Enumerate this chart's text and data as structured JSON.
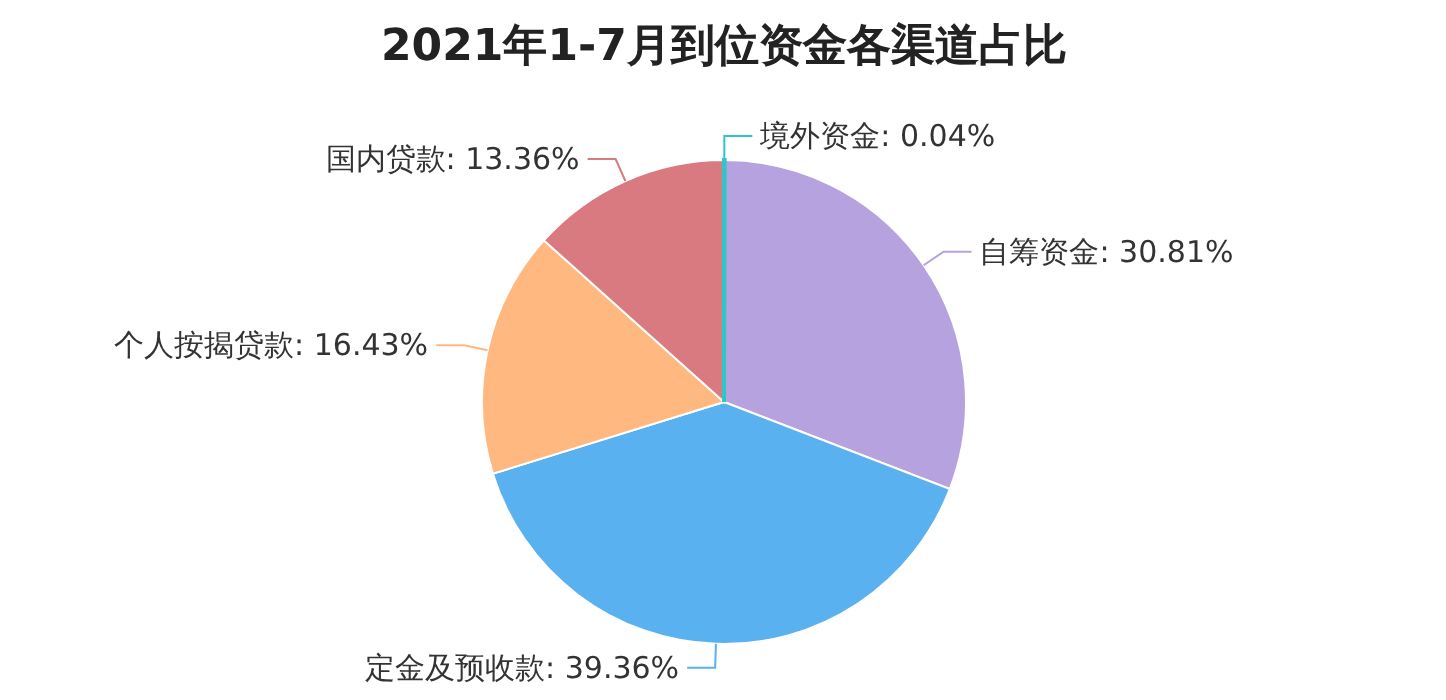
{
  "chart_data": {
    "type": "pie",
    "title": "2021年1-7月到位资金各渠道占比",
    "categories": [
      "境外资金",
      "自筹资金",
      "定金及预收款",
      "个人按揭贷款",
      "国内贷款"
    ],
    "values": [
      0.04,
      30.81,
      39.36,
      16.43,
      13.36
    ],
    "value_labels": [
      "0.04%",
      "30.81%",
      "39.36%",
      "16.43%",
      "13.36%"
    ],
    "colors": [
      "#2ec7c9",
      "#b6a2de",
      "#5ab1ef",
      "#ffb980",
      "#d87a80"
    ]
  }
}
